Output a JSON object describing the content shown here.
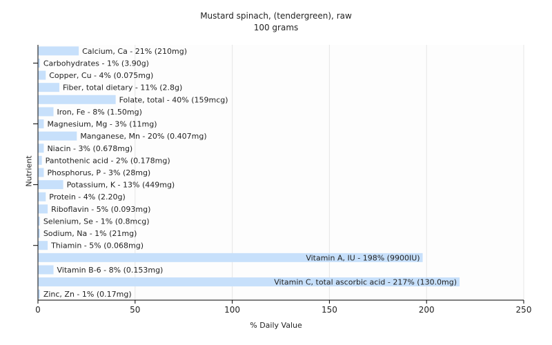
{
  "chart": {
    "title": "Mustard spinach, (tendergreen), raw",
    "subtitle": "100 grams",
    "xlabel": "% Daily Value",
    "ylabel": "Nutrient"
  },
  "colors": {
    "bar": "#c7e0fb",
    "axis": "#000000",
    "grid": "#e6e6e6",
    "text": "#222222"
  },
  "chart_data": {
    "type": "bar",
    "orientation": "horizontal",
    "title": "Mustard spinach, (tendergreen), raw",
    "subtitle": "100 grams",
    "xlabel": "% Daily Value",
    "ylabel": "Nutrient",
    "xlim": [
      0,
      250
    ],
    "xticks": [
      0,
      50,
      100,
      150,
      200,
      250
    ],
    "grid": true,
    "categories": [
      "Calcium, Ca",
      "Carbohydrates",
      "Copper, Cu",
      "Fiber, total dietary",
      "Folate, total",
      "Iron, Fe",
      "Magnesium, Mg",
      "Manganese, Mn",
      "Niacin",
      "Pantothenic acid",
      "Phosphorus, P",
      "Potassium, K",
      "Protein",
      "Riboflavin",
      "Selenium, Se",
      "Sodium, Na",
      "Thiamin",
      "Vitamin A, IU",
      "Vitamin B-6",
      "Vitamin C, total ascorbic acid",
      "Zinc, Zn"
    ],
    "values": [
      21,
      1,
      4,
      11,
      40,
      8,
      3,
      20,
      3,
      2,
      3,
      13,
      4,
      5,
      1,
      1,
      5,
      198,
      8,
      217,
      1
    ],
    "labels": [
      "Calcium, Ca - 21% (210mg)",
      "Carbohydrates - 1% (3.90g)",
      "Copper, Cu - 4% (0.075mg)",
      "Fiber, total dietary - 11% (2.8g)",
      "Folate, total - 40% (159mcg)",
      "Iron, Fe - 8% (1.50mg)",
      "Magnesium, Mg - 3% (11mg)",
      "Manganese, Mn - 20% (0.407mg)",
      "Niacin - 3% (0.678mg)",
      "Pantothenic acid - 2% (0.178mg)",
      "Phosphorus, P - 3% (28mg)",
      "Potassium, K - 13% (449mg)",
      "Protein - 4% (2.20g)",
      "Riboflavin - 5% (0.093mg)",
      "Selenium, Se - 1% (0.8mcg)",
      "Sodium, Na - 1% (21mg)",
      "Thiamin - 5% (0.068mg)",
      "Vitamin A, IU - 198% (9900IU)",
      "Vitamin B-6 - 8% (0.153mg)",
      "Vitamin C, total ascorbic acid - 217% (130.0mg)",
      "Zinc, Zn - 1% (0.17mg)"
    ]
  }
}
